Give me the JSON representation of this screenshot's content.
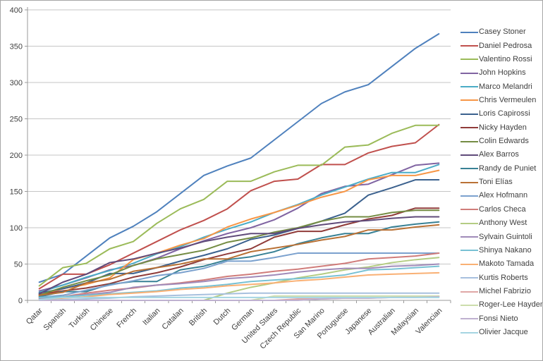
{
  "chart_data": {
    "type": "line",
    "title": "",
    "xlabel": "",
    "ylabel": "",
    "ylim": [
      0,
      400
    ],
    "ytick_step": 50,
    "grid": true,
    "legend_position": "right",
    "colors": {
      "grid": "#c6c6c6",
      "axis": "#9a9a9a",
      "tick_label": "#404040",
      "legend_text": "#3f3f3f",
      "background": "#ffffff"
    },
    "categories": [
      "Qatar",
      "Spanish",
      "Turkish",
      "Chinese",
      "French",
      "Italian",
      "Catalan",
      "British",
      "Dutch",
      "German",
      "United States",
      "Czech Republic",
      "San Marino",
      "Portuguese",
      "Japanese",
      "Australian",
      "Malaysian",
      "Valencian"
    ],
    "series": [
      {
        "name": "Casey Stoner",
        "color": "#4f81bd",
        "values": [
          25,
          36,
          61,
          86,
          102,
          122,
          147,
          172,
          185,
          196,
          221,
          246,
          271,
          287,
          297,
          322,
          347,
          367
        ]
      },
      {
        "name": "Daniel Pedrosa",
        "color": "#c0504d",
        "values": [
          16,
          36,
          36,
          49,
          65,
          81,
          97,
          110,
          126,
          151,
          164,
          167,
          187,
          187,
          203,
          212,
          217,
          242
        ]
      },
      {
        "name": "Valentino Rossi",
        "color": "#9bbb59",
        "values": [
          20,
          45,
          51,
          71,
          81,
          106,
          126,
          139,
          164,
          164,
          177,
          186,
          186,
          211,
          214,
          230,
          241,
          241
        ]
      },
      {
        "name": "John Hopkins",
        "color": "#8064a2",
        "values": [
          13,
          21,
          31,
          42,
          48,
          58,
          71,
          82,
          92,
          100,
          111,
          127,
          147,
          157,
          160,
          173,
          186,
          189
        ]
      },
      {
        "name": "Marco Melandri",
        "color": "#4bacc6",
        "values": [
          11,
          21,
          32,
          41,
          51,
          64,
          74,
          87,
          98,
          108,
          121,
          132,
          145,
          156,
          167,
          176,
          176,
          187
        ]
      },
      {
        "name": "Chris Vermeulen",
        "color": "#f79646",
        "values": [
          6,
          16,
          22,
          31,
          56,
          65,
          76,
          85,
          101,
          112,
          121,
          131,
          142,
          150,
          166,
          172,
          172,
          179
        ]
      },
      {
        "name": "Loris Capirossi",
        "color": "#3b618e",
        "values": [
          10,
          16,
          24,
          37,
          37,
          45,
          54,
          62,
          71,
          84,
          90,
          99,
          109,
          120,
          145,
          155,
          166,
          166
        ]
      },
      {
        "name": "Nicky Hayden",
        "color": "#903c3a",
        "values": [
          8,
          13,
          17,
          23,
          32,
          38,
          46,
          56,
          64,
          71,
          87,
          95,
          95,
          104,
          112,
          117,
          127,
          127
        ]
      },
      {
        "name": "Colin Edwards",
        "color": "#748c43",
        "values": [
          7,
          18,
          27,
          35,
          48,
          57,
          63,
          69,
          80,
          86,
          94,
          100,
          109,
          115,
          115,
          121,
          124,
          124
        ]
      },
      {
        "name": "Alex Barros",
        "color": "#604b7a",
        "values": [
          9,
          25,
          36,
          52,
          57,
          65,
          72,
          81,
          87,
          92,
          92,
          99,
          104,
          108,
          110,
          113,
          115,
          115
        ]
      },
      {
        "name": "Randy de Puniet",
        "color": "#388195",
        "values": [
          5,
          12,
          12,
          22,
          26,
          26,
          42,
          47,
          56,
          60,
          67,
          78,
          86,
          92,
          92,
          101,
          105,
          108
        ]
      },
      {
        "name": "Toni Elías",
        "color": "#b97135",
        "values": [
          7,
          11,
          24,
          29,
          40,
          45,
          50,
          57,
          57,
          67,
          72,
          77,
          83,
          88,
          97,
          97,
          101,
          104
        ]
      },
      {
        "name": "Alex Hofmann",
        "color": "#7ba1ce",
        "values": [
          4,
          7,
          14,
          21,
          27,
          34,
          38,
          44,
          54,
          54,
          59,
          65,
          65,
          65,
          65,
          65,
          65,
          65
        ]
      },
      {
        "name": "Carlos Checa",
        "color": "#d07c7a",
        "values": [
          3,
          5,
          10,
          14,
          17,
          21,
          24,
          28,
          33,
          36,
          40,
          43,
          47,
          51,
          57,
          59,
          61,
          65
        ]
      },
      {
        "name": "Anthony West",
        "color": "#b4cc83",
        "values": [
          0,
          0,
          0,
          0,
          0,
          0,
          0,
          0,
          10,
          18,
          24,
          31,
          36,
          42,
          46,
          52,
          56,
          59
        ]
      },
      {
        "name": "Sylvain Guintoli",
        "color": "#a08bb9",
        "values": [
          2,
          5,
          8,
          11,
          18,
          21,
          23,
          26,
          30,
          32,
          35,
          39,
          42,
          44,
          44,
          47,
          48,
          50
        ]
      },
      {
        "name": "Shinya Nakano",
        "color": "#78c1d4",
        "values": [
          4,
          5,
          7,
          9,
          11,
          13,
          17,
          19,
          22,
          26,
          28,
          30,
          32,
          35,
          42,
          43,
          45,
          47
        ]
      },
      {
        "name": "Makoto Tamada",
        "color": "#f9b074",
        "values": [
          1,
          3,
          5,
          8,
          10,
          12,
          15,
          17,
          20,
          22,
          24,
          27,
          29,
          32,
          35,
          36,
          37,
          38
        ]
      },
      {
        "name": "Kurtis Roberts",
        "color": "#a7c0de",
        "values": [
          0,
          1,
          2,
          3,
          5,
          6,
          7,
          8,
          9,
          10,
          10,
          10,
          10,
          10,
          10,
          10,
          10,
          10
        ]
      },
      {
        "name": "Michel Fabrizio",
        "color": "#dfa7a6",
        "values": [
          0,
          0,
          0,
          0,
          0,
          0,
          0,
          0,
          0,
          0,
          0,
          2,
          2,
          3,
          3,
          4,
          5,
          6
        ]
      },
      {
        "name": "Roger-Lee Hayden",
        "color": "#cdddac",
        "values": [
          0,
          0,
          0,
          0,
          0,
          0,
          0,
          0,
          0,
          0,
          6,
          6,
          6,
          6,
          6,
          6,
          6,
          6
        ]
      },
      {
        "name": "Fonsi Nieto",
        "color": "#bfb1d0",
        "values": [
          0,
          0,
          0,
          0,
          0,
          0,
          0,
          0,
          0,
          0,
          0,
          0,
          2,
          3,
          3,
          4,
          4,
          5
        ]
      },
      {
        "name": "Olivier Jacque",
        "color": "#a5d5e2",
        "values": [
          1,
          4,
          4,
          4,
          4,
          4,
          4,
          4,
          4,
          4,
          4,
          4,
          4,
          4,
          4,
          4,
          4,
          4
        ]
      }
    ]
  }
}
